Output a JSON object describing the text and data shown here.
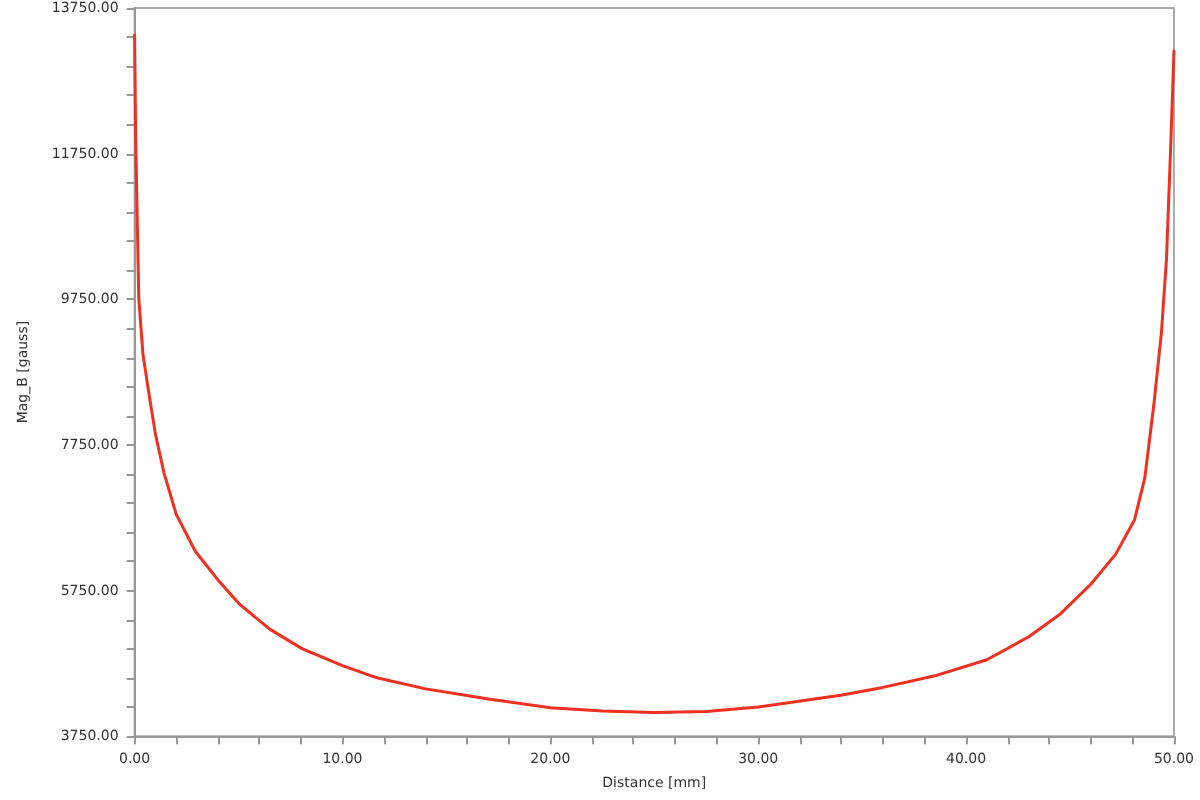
{
  "chart_data": {
    "type": "line",
    "xlabel": "Distance [mm]",
    "ylabel": "Mag_B [gauss]",
    "x": [
      0,
      0.05,
      0.2,
      0.4,
      0.66,
      1.0,
      1.42,
      2.0,
      2.92,
      4.0,
      5.03,
      6.5,
      8.05,
      10,
      11.66,
      14,
      17.1,
      20,
      22.5,
      25,
      27.5,
      30,
      33.97,
      36,
      38.5,
      41,
      43.0,
      44.5,
      46.0,
      47.2,
      48.1,
      48.6,
      49.04,
      49.4,
      49.64,
      49.85,
      50
    ],
    "series": [
      {
        "color": "#f03020",
        "values": [
          13380,
          12000,
          9766,
          9000,
          8509,
          7900,
          7360,
          6800,
          6290,
          5900,
          5568,
          5220,
          4953,
          4720,
          4552,
          4400,
          4258,
          4140,
          4095,
          4076,
          4090,
          4151,
          4311,
          4420,
          4579,
          4800,
          5113,
          5420,
          5836,
          6250,
          6718,
          7300,
          8322,
          9300,
          10300,
          11900,
          13160
        ]
      }
    ],
    "xlim": [
      0,
      50
    ],
    "ylim": [
      3750,
      13750
    ],
    "xticks": [
      {
        "value": 0,
        "label": "0.00"
      },
      {
        "value": 2,
        "label": null
      },
      {
        "value": 4,
        "label": null
      },
      {
        "value": 6,
        "label": null
      },
      {
        "value": 8,
        "label": null
      },
      {
        "value": 10,
        "label": "10.00"
      },
      {
        "value": 12,
        "label": null
      },
      {
        "value": 14,
        "label": null
      },
      {
        "value": 16,
        "label": null
      },
      {
        "value": 18,
        "label": null
      },
      {
        "value": 20,
        "label": "20.00"
      },
      {
        "value": 22,
        "label": null
      },
      {
        "value": 24,
        "label": null
      },
      {
        "value": 26,
        "label": null
      },
      {
        "value": 28,
        "label": null
      },
      {
        "value": 30,
        "label": "30.00"
      },
      {
        "value": 32,
        "label": null
      },
      {
        "value": 34,
        "label": null
      },
      {
        "value": 36,
        "label": null
      },
      {
        "value": 38,
        "label": null
      },
      {
        "value": 40,
        "label": "40.00"
      },
      {
        "value": 42,
        "label": null
      },
      {
        "value": 44,
        "label": null
      },
      {
        "value": 46,
        "label": null
      },
      {
        "value": 48,
        "label": null
      },
      {
        "value": 50,
        "label": "50.00"
      }
    ],
    "yticks": [
      {
        "value": 3750,
        "label": "3750.00"
      },
      {
        "value": 4150,
        "label": null
      },
      {
        "value": 4550,
        "label": null
      },
      {
        "value": 4950,
        "label": null
      },
      {
        "value": 5350,
        "label": null
      },
      {
        "value": 5750,
        "label": "5750.00"
      },
      {
        "value": 6150,
        "label": null
      },
      {
        "value": 6550,
        "label": null
      },
      {
        "value": 6950,
        "label": null
      },
      {
        "value": 7350,
        "label": null
      },
      {
        "value": 7750,
        "label": "7750.00"
      },
      {
        "value": 8150,
        "label": null
      },
      {
        "value": 8550,
        "label": null
      },
      {
        "value": 8950,
        "label": null
      },
      {
        "value": 9350,
        "label": null
      },
      {
        "value": 9750,
        "label": "9750.00"
      },
      {
        "value": 10150,
        "label": null
      },
      {
        "value": 10550,
        "label": null
      },
      {
        "value": 10950,
        "label": null
      },
      {
        "value": 11350,
        "label": null
      },
      {
        "value": 11750,
        "label": "11750.00"
      },
      {
        "value": 12150,
        "label": null
      },
      {
        "value": 12550,
        "label": null
      },
      {
        "value": 12950,
        "label": null
      },
      {
        "value": 13350,
        "label": null
      },
      {
        "value": 13750,
        "label": "13750.00"
      }
    ],
    "marker": "none",
    "line_style": "solid"
  }
}
